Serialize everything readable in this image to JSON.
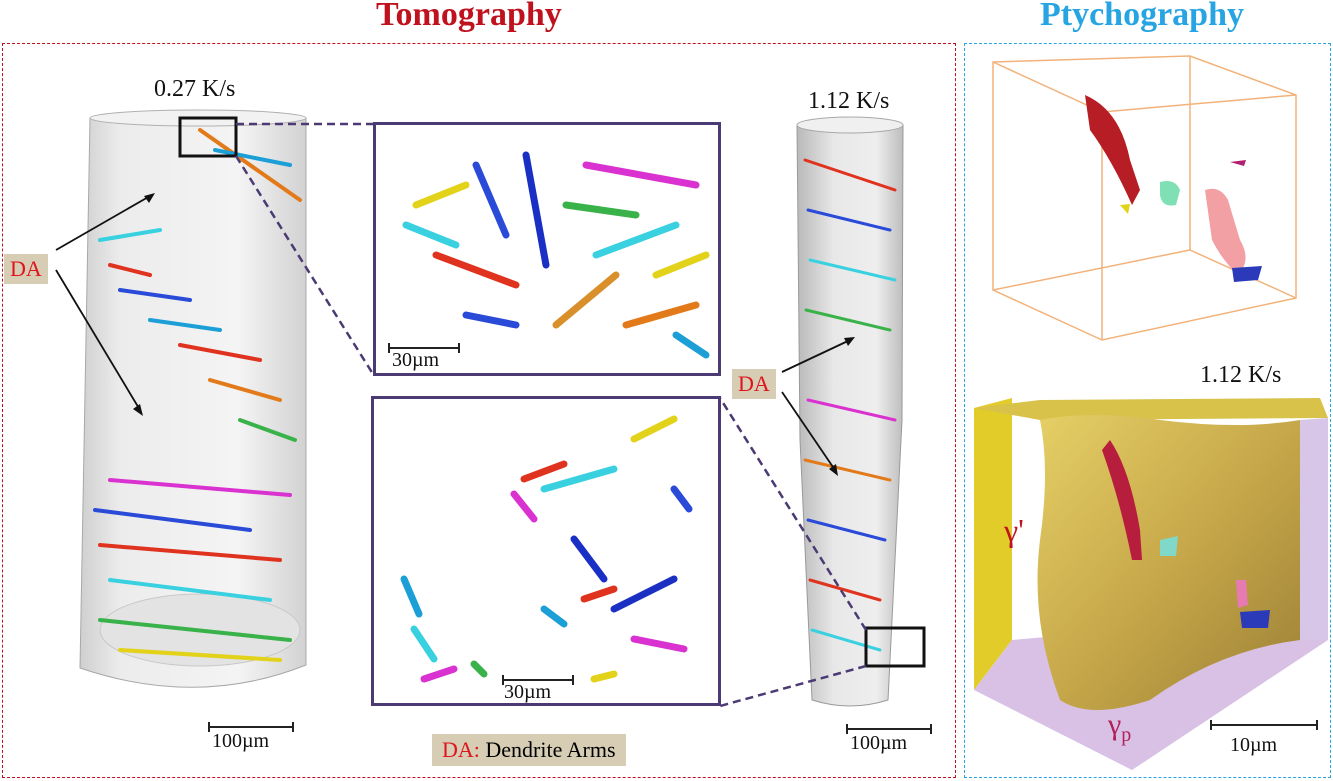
{
  "titles": {
    "tomography": "Tomography",
    "ptychography": "Ptychography"
  },
  "colors": {
    "tomography": "#c0121e",
    "ptychography": "#27a4e2"
  },
  "tomography": {
    "sample_left": {
      "rate": "0.27 K/s",
      "scale": "100µm"
    },
    "sample_right": {
      "rate": "1.12 K/s",
      "scale": "100µm"
    },
    "inset_top": {
      "scale": "30µm"
    },
    "inset_bottom": {
      "scale": "30µm"
    },
    "da_label_left": "DA",
    "da_label_right": "DA",
    "legend": {
      "key": "DA:",
      "text": "Dendrite Arms"
    }
  },
  "ptychography": {
    "rate": "1.12 K/s",
    "phase_gamma_prime": "γ'",
    "phase_gamma_p": "γ",
    "phase_gamma_p_sub": "p",
    "scale": "10µm"
  }
}
